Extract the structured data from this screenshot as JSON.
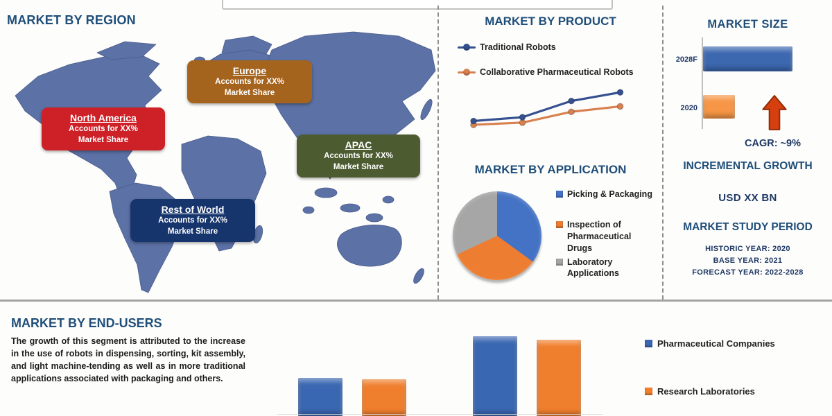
{
  "colors": {
    "heading": "#1F4E79",
    "navy": "#1F3864",
    "text": "#222222",
    "map": "#5C71A5",
    "arrow": "#D6400F",
    "arrow_stroke": "#952D07"
  },
  "region": {
    "title": "MARKET BY REGION",
    "labels": [
      {
        "name": "Europe",
        "sub1": "Accounts for XX%",
        "sub2": "Market Share",
        "color": "#A5641E"
      },
      {
        "name": "North America",
        "sub1": "Accounts for XX%",
        "sub2": "Market Share",
        "color": "#CE2127"
      },
      {
        "name": "APAC",
        "sub1": "Accounts for XX%",
        "sub2": "Market Share",
        "color": "#4D5B31"
      },
      {
        "name": "Rest of World",
        "sub1": "Accounts for XX%",
        "sub2": "Market Share",
        "color": "#16356D"
      }
    ]
  },
  "product": {
    "title": "MARKET BY PRODUCT",
    "legend": [
      {
        "label": "Traditional Robots",
        "color": "#35508F"
      },
      {
        "label": "Collaborative Pharmaceutical Robots",
        "color": "#D9804F"
      }
    ]
  },
  "application": {
    "title": "MARKET BY APPLICATION",
    "legend": [
      {
        "label": "Picking & Packaging",
        "color": "#4472C4"
      },
      {
        "label": "Inspection of Pharmaceutical Drugs",
        "color": "#ED7D31"
      },
      {
        "label": "Laboratory Applications",
        "color": "#A6A6A6"
      }
    ]
  },
  "market_size": {
    "title": "MARKET SIZE",
    "cagr_label": "CAGR:  ~9%",
    "incremental_title": "INCREMENTAL GROWTH",
    "incremental_value": "USD XX BN",
    "study_title": "MARKET STUDY PERIOD",
    "study_lines": [
      "HISTORIC YEAR: 2020",
      "BASE YEAR: 2021",
      "FORECAST YEAR: 2022-2028"
    ]
  },
  "end_users": {
    "title": "MARKET BY END-USERS",
    "description": "The growth of this segment is attributed to the increase in the use of robots in dispensing, sorting, kit assembly, and light machine-tending as well as in more traditional applications associated with packaging and others.",
    "legend": [
      {
        "label": "Pharmaceutical Companies",
        "color": "#3A67B1"
      },
      {
        "label": "Research Laboratories",
        "color": "#F07F2D"
      }
    ]
  },
  "chart_data": [
    {
      "id": "product-line",
      "type": "line",
      "title": "MARKET BY PRODUCT",
      "x": [
        "1",
        "2",
        "3",
        "4"
      ],
      "series": [
        {
          "name": "Traditional Robots",
          "color": "#35508F",
          "values": [
            25,
            32,
            62,
            78
          ]
        },
        {
          "name": "Collaborative Pharmaceutical Robots",
          "color": "#D9804F",
          "values": [
            18,
            22,
            42,
            52
          ]
        }
      ],
      "ylim": [
        0,
        100
      ],
      "axes_visible": false,
      "legend_position": "top",
      "units": "relative (values shown as XX in source)"
    },
    {
      "id": "application-pie",
      "type": "pie",
      "title": "MARKET BY APPLICATION",
      "labels": [
        "Picking & Packaging",
        "Inspection of Pharmaceutical Drugs",
        "Laboratory Applications"
      ],
      "values": [
        35,
        33,
        32
      ],
      "colors": [
        "#4472C4",
        "#ED7D31",
        "#A6A6A6"
      ],
      "legend_position": "right",
      "units": "percent (estimated, shares shown as XX in source)"
    },
    {
      "id": "market-size-bar",
      "type": "bar",
      "orientation": "horizontal",
      "title": "MARKET SIZE",
      "categories": [
        "2028F",
        "2020"
      ],
      "values": [
        100,
        36
      ],
      "colors": [
        "#3C68B0",
        "#F79646"
      ],
      "xlim": [
        0,
        100
      ],
      "axes_visible": true,
      "units": "relative (USD XX BN)"
    },
    {
      "id": "end-users-bar",
      "type": "bar",
      "title": "MARKET BY END-USERS",
      "categories": [
        "",
        ""
      ],
      "series": [
        {
          "name": "Pharmaceutical Companies",
          "color": "#3A67B1",
          "values": [
            47,
            98
          ]
        },
        {
          "name": "Research Laboratories",
          "color": "#F07F2D",
          "values": [
            45,
            94
          ]
        }
      ],
      "ylim": [
        0,
        100
      ],
      "units": "relative (axis cut off at image edge)"
    }
  ]
}
